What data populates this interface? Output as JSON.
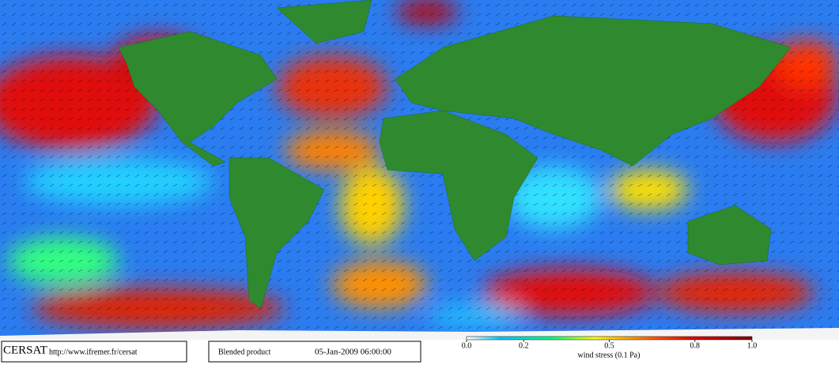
{
  "logo": "CERSAT",
  "url": "http://www.ifremer.fr/cersat",
  "product": "Blended product",
  "datetime": "05-Jan-2009 06:00:00",
  "colorbar": {
    "label": "wind stress (0.1 Pa)",
    "range": [
      0,
      1
    ],
    "ticks": [
      {
        "value": 0,
        "label": "0.0"
      },
      0.2,
      0.5,
      0.8,
      {
        "value": 1,
        "label": "1.0"
      }
    ]
  }
}
